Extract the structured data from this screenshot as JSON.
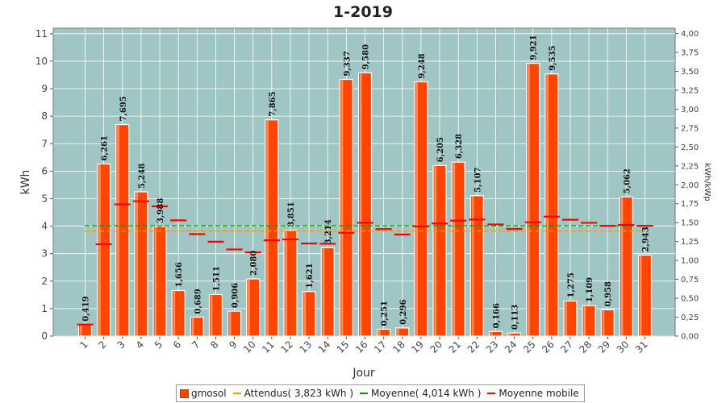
{
  "chart_data": {
    "type": "bar",
    "title": "1-2019",
    "xlabel": "Jour",
    "ylabel": "kWh",
    "ylabel_right": "kWh/kWp",
    "ylim": [
      0,
      11.2
    ],
    "y_ticks": [
      "0",
      "1",
      "2",
      "3",
      "4",
      "5",
      "6",
      "7",
      "8",
      "9",
      "10",
      "11"
    ],
    "y2lim": [
      0,
      4.07
    ],
    "y2_ticks": [
      "0,00",
      "0,25",
      "0,50",
      "0,75",
      "1,00",
      "1,25",
      "1,50",
      "1,75",
      "2,00",
      "2,25",
      "2,50",
      "2,75",
      "3,00",
      "3,25",
      "3,50",
      "3,75",
      "4,00"
    ],
    "categories": [
      "1",
      "2",
      "3",
      "4",
      "5",
      "6",
      "7",
      "8",
      "9",
      "10",
      "11",
      "12",
      "13",
      "14",
      "15",
      "16",
      "17",
      "18",
      "19",
      "20",
      "21",
      "22",
      "23",
      "24",
      "25",
      "26",
      "27",
      "28",
      "29",
      "30",
      "31"
    ],
    "series": [
      {
        "name": "gmosol",
        "values": [
          0.419,
          6.261,
          7.695,
          5.248,
          3.988,
          1.656,
          0.689,
          1.511,
          0.906,
          2.08,
          7.865,
          3.851,
          1.621,
          3.214,
          9.337,
          9.58,
          0.251,
          0.296,
          9.248,
          6.205,
          6.328,
          5.107,
          0.166,
          0.113,
          9.921,
          9.535,
          1.275,
          1.109,
          0.958,
          5.062,
          2.943
        ],
        "labels": [
          "0,419",
          "6,261",
          "7,695",
          "5,248",
          "3,988",
          "1,656",
          "0,689",
          "1,511",
          "0,906",
          "2,080",
          "7,865",
          "3,851",
          "1,621",
          "3,214",
          "9,337",
          "9,580",
          "0,251",
          "0,296",
          "9,248",
          "6,205",
          "6,328",
          "5,107",
          "0,166",
          "0,113",
          "9,921",
          "9,535",
          "1,275",
          "1,109",
          "0,958",
          "5,062",
          "2,943"
        ],
        "color": "#ff4500"
      },
      {
        "name": "Attendus( 3,823 kWh )",
        "value": 3.823,
        "color": "#ff9900"
      },
      {
        "name": "Moyenne( 4,014 kWh )",
        "value": 4.014,
        "color": "#009900"
      },
      {
        "name": "Moyenne mobile",
        "values": [
          0.419,
          3.34,
          4.792,
          4.906,
          4.722,
          4.211,
          3.708,
          3.434,
          3.153,
          3.046,
          3.485,
          3.516,
          3.37,
          3.359,
          3.758,
          4.122,
          3.894,
          3.694,
          3.986,
          4.097,
          4.199,
          4.24,
          4.063,
          3.899,
          4.14,
          4.347,
          4.233,
          4.121,
          4.012,
          4.047,
          4.014
        ],
        "color": "#ff0000"
      }
    ],
    "grid": true,
    "legend_position": "bottom",
    "plot_background": "#9fc5c5"
  }
}
